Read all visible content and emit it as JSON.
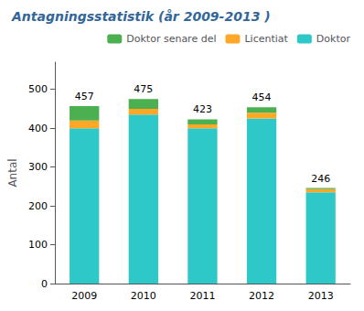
{
  "chart_data": {
    "type": "bar",
    "title": "Antagningsstatistik (år 2009-2013 )",
    "ylabel": "Antal",
    "categories": [
      "2009",
      "2010",
      "2011",
      "2012",
      "2013"
    ],
    "series": [
      {
        "name": "Doktor",
        "color": "#2EC8C8",
        "values": [
          400,
          435,
          400,
          425,
          235
        ]
      },
      {
        "name": "Licentiat",
        "color": "#FFA726",
        "values": [
          20,
          15,
          10,
          15,
          8
        ]
      },
      {
        "name": "Doktor senare del",
        "color": "#4CAF50",
        "values": [
          37,
          25,
          13,
          14,
          3
        ]
      }
    ],
    "totals": [
      457,
      475,
      423,
      454,
      246
    ],
    "stacked": true,
    "ylim": [
      0,
      570
    ],
    "yticks": [
      0,
      100,
      200,
      300,
      400,
      500
    ],
    "grid": false,
    "legend": "upper right"
  }
}
